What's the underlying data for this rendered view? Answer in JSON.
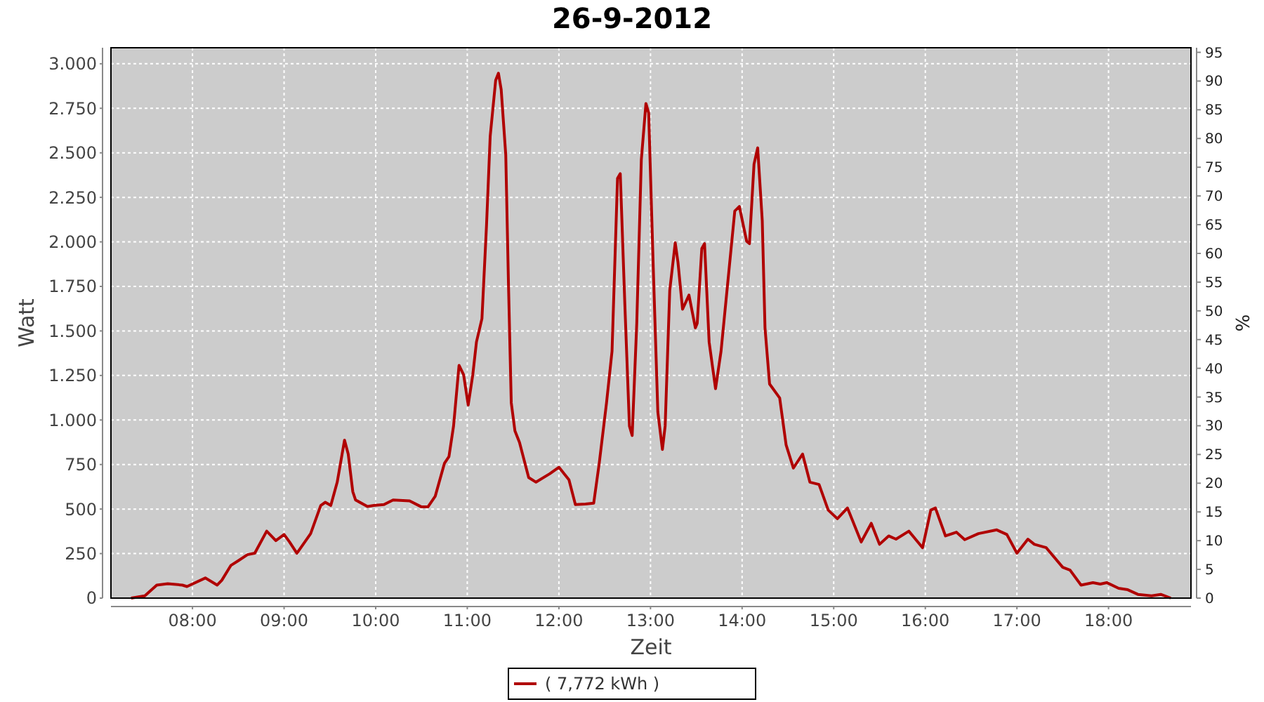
{
  "chart_data": {
    "type": "line",
    "title": "26-9-2012",
    "xlabel": "Zeit",
    "ylabel": "Watt",
    "y2label": "%",
    "xlim": [
      7.11,
      18.9
    ],
    "xticks": [
      {
        "value": 8,
        "label": "08:00"
      },
      {
        "value": 9,
        "label": "09:00"
      },
      {
        "value": 10,
        "label": "10:00"
      },
      {
        "value": 11,
        "label": "11:00"
      },
      {
        "value": 12,
        "label": "12:00"
      },
      {
        "value": 13,
        "label": "13:00"
      },
      {
        "value": 14,
        "label": "14:00"
      },
      {
        "value": 15,
        "label": "15:00"
      },
      {
        "value": 16,
        "label": "16:00"
      },
      {
        "value": 17,
        "label": "17:00"
      },
      {
        "value": 18,
        "label": "18:00"
      }
    ],
    "ylim": [
      0,
      3090
    ],
    "yticks": [
      0,
      250,
      500,
      750,
      {
        "value": 1000,
        "label": "1.000"
      },
      {
        "value": 1250,
        "label": "1.250"
      },
      {
        "value": 1500,
        "label": "1.500"
      },
      {
        "value": 1750,
        "label": "1.750"
      },
      {
        "value": 2000,
        "label": "2.000"
      },
      {
        "value": 2250,
        "label": "2.250"
      },
      {
        "value": 2500,
        "label": "2.500"
      },
      {
        "value": 2750,
        "label": "2.750"
      },
      {
        "value": 3000,
        "label": "3.000"
      }
    ],
    "y2lim": [
      0,
      95.8
    ],
    "y2ticks": [
      0,
      5,
      10,
      15,
      20,
      25,
      30,
      35,
      40,
      45,
      50,
      55,
      60,
      65,
      70,
      75,
      80,
      85,
      90,
      95
    ],
    "grid": true,
    "legend": "bottom",
    "series": [
      {
        "name": "( 7,772 kWh )",
        "color": "#b00000",
        "x": [
          7.33,
          7.48,
          7.61,
          7.73,
          7.89,
          7.94,
          8.14,
          8.27,
          8.32,
          8.42,
          8.5,
          8.6,
          8.68,
          8.81,
          8.91,
          9.0,
          9.06,
          9.14,
          9.29,
          9.4,
          9.45,
          9.51,
          9.58,
          9.66,
          9.7,
          9.75,
          9.78,
          9.91,
          9.98,
          10.09,
          10.19,
          10.37,
          10.5,
          10.57,
          10.65,
          10.75,
          10.8,
          10.85,
          10.91,
          10.96,
          11.01,
          11.06,
          11.1,
          11.16,
          11.21,
          11.25,
          11.31,
          11.34,
          11.37,
          11.42,
          11.45,
          11.48,
          11.52,
          11.57,
          11.67,
          11.75,
          11.9,
          12.0,
          12.11,
          12.18,
          12.29,
          12.38,
          12.44,
          12.52,
          12.58,
          12.64,
          12.67,
          12.72,
          12.77,
          12.8,
          12.85,
          12.9,
          12.95,
          12.98,
          13.03,
          13.08,
          13.13,
          13.16,
          13.21,
          13.27,
          13.3,
          13.35,
          13.42,
          13.49,
          13.51,
          13.56,
          13.59,
          13.64,
          13.71,
          13.77,
          13.84,
          13.92,
          13.97,
          14.05,
          14.08,
          14.13,
          14.17,
          14.22,
          14.25,
          14.3,
          14.41,
          14.48,
          14.56,
          14.66,
          14.74,
          14.84,
          14.94,
          15.04,
          15.15,
          15.3,
          15.41,
          15.5,
          15.6,
          15.68,
          15.82,
          15.97,
          16.06,
          16.11,
          16.22,
          16.34,
          16.43,
          16.58,
          16.78,
          16.89,
          17.0,
          17.12,
          17.19,
          17.32,
          17.5,
          17.58,
          17.7,
          17.83,
          17.91,
          17.98,
          18.11,
          18.21,
          18.32,
          18.47,
          18.57,
          18.68
        ],
        "values": [
          0,
          13,
          73,
          81,
          73,
          65,
          113,
          73,
          100,
          184,
          210,
          244,
          252,
          376,
          323,
          357,
          315,
          252,
          362,
          520,
          538,
          520,
          651,
          887,
          809,
          598,
          551,
          514,
          520,
          525,
          551,
          546,
          512,
          512,
          572,
          756,
          795,
          966,
          1307,
          1254,
          1084,
          1254,
          1438,
          1569,
          2094,
          2593,
          2908,
          2947,
          2855,
          2488,
          1754,
          1097,
          939,
          874,
          677,
          651,
          698,
          735,
          664,
          525,
          528,
          533,
          756,
          1097,
          1386,
          2357,
          2383,
          1648,
          966,
          913,
          1543,
          2462,
          2777,
          2724,
          1858,
          1045,
          835,
          966,
          1727,
          1995,
          1885,
          1622,
          1701,
          1517,
          1543,
          1963,
          1990,
          1438,
          1176,
          1386,
          1754,
          2173,
          2199,
          2003,
          1990,
          2436,
          2528,
          2120,
          1517,
          1202,
          1124,
          861,
          730,
          809,
          651,
          638,
          494,
          446,
          506,
          315,
          420,
          302,
          349,
          331,
          376,
          283,
          494,
          506,
          349,
          370,
          328,
          362,
          383,
          357,
          252,
          331,
          302,
          283,
          173,
          157,
          73,
          87,
          79,
          87,
          55,
          47,
          21,
          13,
          21,
          0
        ]
      }
    ]
  }
}
